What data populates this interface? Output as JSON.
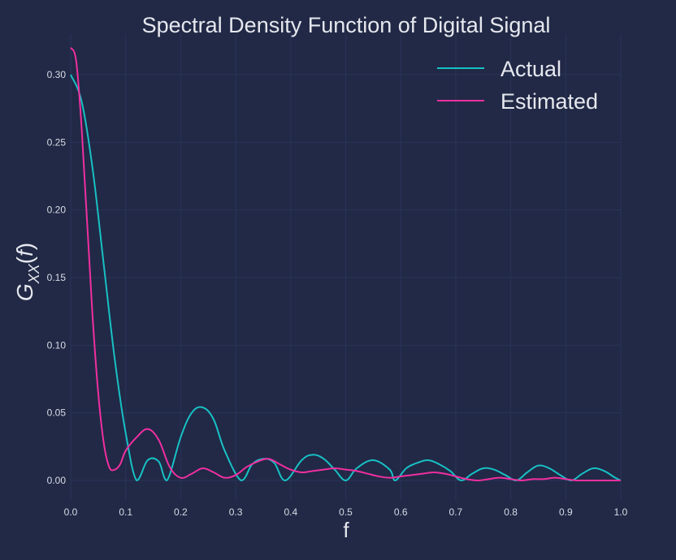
{
  "chart_data": {
    "type": "line",
    "title": "Spectral Density Function of Digital Signal",
    "xlabel": "f",
    "ylabel": "G_XX(f)",
    "xlim": [
      0,
      1
    ],
    "ylim": [
      -0.015,
      0.33
    ],
    "xticks": [
      "0.0",
      "0.1",
      "0.2",
      "0.3",
      "0.4",
      "0.5",
      "0.6",
      "0.7",
      "0.8",
      "0.9",
      "1.0"
    ],
    "yticks": [
      "0.00",
      "0.05",
      "0.10",
      "0.15",
      "0.20",
      "0.25",
      "0.30"
    ],
    "grid": true,
    "legend_position": "top-right",
    "series": [
      {
        "name": "Actual",
        "color": "#18c0c4",
        "x": [
          0.0,
          0.02,
          0.04,
          0.06,
          0.08,
          0.1,
          0.12,
          0.14,
          0.16,
          0.175,
          0.2,
          0.22,
          0.24,
          0.26,
          0.28,
          0.31,
          0.33,
          0.35,
          0.37,
          0.39,
          0.42,
          0.44,
          0.46,
          0.48,
          0.5,
          0.52,
          0.55,
          0.58,
          0.59,
          0.61,
          0.63,
          0.65,
          0.67,
          0.69,
          0.71,
          0.73,
          0.75,
          0.77,
          0.79,
          0.81,
          0.83,
          0.85,
          0.87,
          0.89,
          0.91,
          0.93,
          0.95,
          0.97,
          0.99,
          1.0
        ],
        "y": [
          0.3,
          0.28,
          0.23,
          0.16,
          0.09,
          0.035,
          0.0,
          0.015,
          0.014,
          0.0,
          0.032,
          0.05,
          0.054,
          0.045,
          0.022,
          0.0,
          0.012,
          0.016,
          0.013,
          0.0,
          0.015,
          0.019,
          0.016,
          0.008,
          0.0,
          0.009,
          0.015,
          0.008,
          0.0,
          0.009,
          0.013,
          0.015,
          0.012,
          0.007,
          0.0,
          0.005,
          0.009,
          0.008,
          0.004,
          0.0,
          0.006,
          0.011,
          0.009,
          0.004,
          0.0,
          0.005,
          0.009,
          0.007,
          0.002,
          0.0
        ]
      },
      {
        "name": "Estimated",
        "color": "#f02fa0",
        "x": [
          0.0,
          0.01,
          0.02,
          0.03,
          0.04,
          0.05,
          0.06,
          0.07,
          0.08,
          0.09,
          0.1,
          0.12,
          0.14,
          0.16,
          0.18,
          0.2,
          0.22,
          0.24,
          0.26,
          0.28,
          0.3,
          0.32,
          0.34,
          0.36,
          0.38,
          0.4,
          0.42,
          0.44,
          0.46,
          0.48,
          0.5,
          0.52,
          0.54,
          0.56,
          0.58,
          0.6,
          0.62,
          0.64,
          0.66,
          0.68,
          0.7,
          0.72,
          0.74,
          0.76,
          0.78,
          0.8,
          0.82,
          0.84,
          0.86,
          0.88,
          0.9,
          0.92,
          0.94,
          0.96,
          0.98,
          1.0
        ],
        "y": [
          0.32,
          0.31,
          0.26,
          0.19,
          0.12,
          0.065,
          0.028,
          0.01,
          0.008,
          0.012,
          0.022,
          0.032,
          0.038,
          0.03,
          0.01,
          0.002,
          0.005,
          0.009,
          0.006,
          0.002,
          0.004,
          0.01,
          0.014,
          0.016,
          0.012,
          0.008,
          0.006,
          0.007,
          0.008,
          0.009,
          0.008,
          0.007,
          0.005,
          0.003,
          0.002,
          0.003,
          0.004,
          0.005,
          0.006,
          0.005,
          0.003,
          0.001,
          0.0,
          0.001,
          0.002,
          0.001,
          0.0,
          0.001,
          0.001,
          0.002,
          0.001,
          0.0,
          0.0,
          0.0,
          0.0,
          0.0
        ]
      }
    ]
  }
}
